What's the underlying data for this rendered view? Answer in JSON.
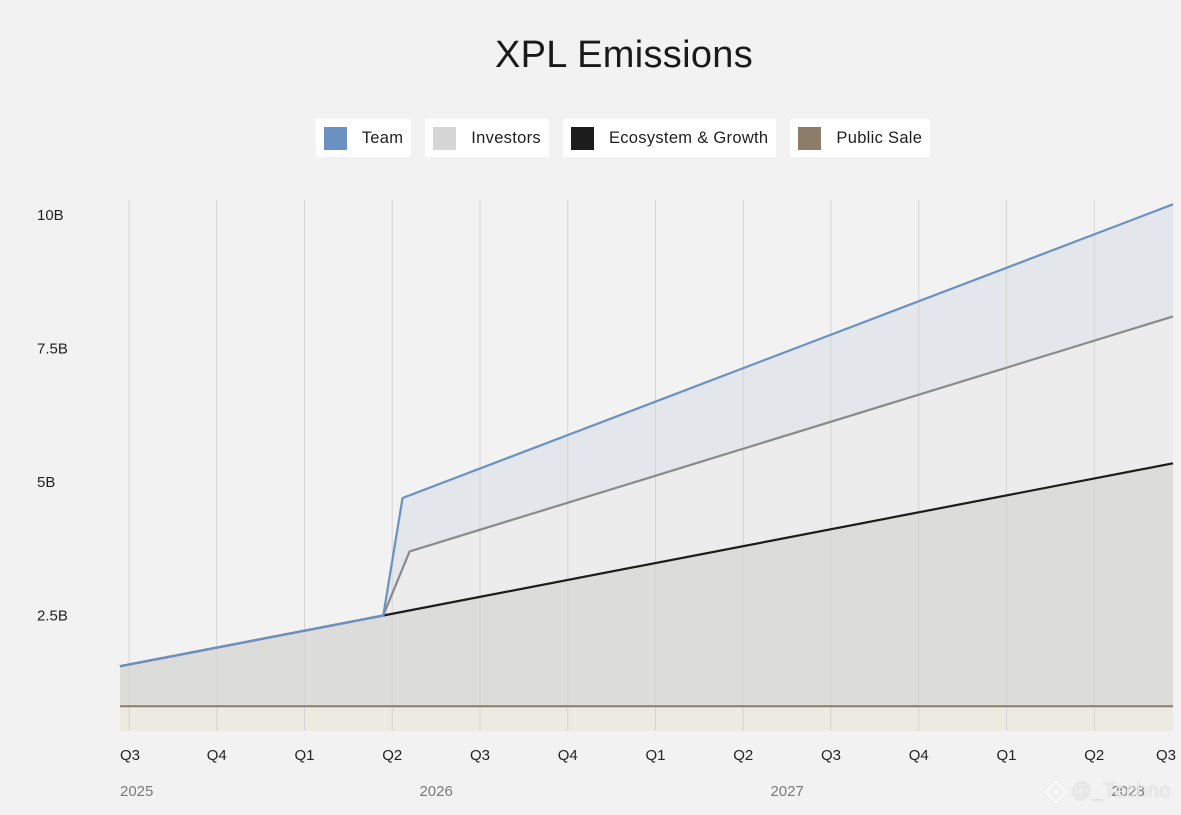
{
  "chart_data": {
    "type": "area",
    "title": "XPL Emissions",
    "xlabel": "",
    "ylabel": "",
    "stacked": true,
    "legend_position": "top-center",
    "grid": {
      "vertical": true,
      "horizontal": false
    },
    "x_ticks": [
      "Q3",
      "Q4",
      "Q1",
      "Q2",
      "Q3",
      "Q4",
      "Q1",
      "Q2",
      "Q3",
      "Q4",
      "Q1",
      "Q2",
      "Q3"
    ],
    "year_labels": [
      {
        "label": "2025",
        "at": 0
      },
      {
        "label": "2026",
        "at": 3.5
      },
      {
        "label": "2027",
        "at": 7.5
      },
      {
        "label": "2028",
        "at": 11.5
      }
    ],
    "y_ticks": [
      {
        "label": "2.5B",
        "value": 2.5
      },
      {
        "label": "5B",
        "value": 5
      },
      {
        "label": "7.5B",
        "value": 7.5
      },
      {
        "label": "10B",
        "value": 10
      }
    ],
    "ylim": [
      0,
      10
    ],
    "y_unit": "B",
    "series": [
      {
        "name": "Public Sale",
        "color": "#8c7d68",
        "fill": "#ecebe2",
        "points": [
          [
            0,
            0.8
          ],
          [
            12,
            0.8
          ]
        ]
      },
      {
        "name": "Ecosystem & Growth",
        "color": "#1c1c1c",
        "fill": "#dcdddb",
        "points": [
          [
            0,
            1.55
          ],
          [
            3,
            2.5
          ],
          [
            12,
            5.35
          ]
        ]
      },
      {
        "name": "Investors",
        "color": "#8a8a8a",
        "fill": "#ececec",
        "points": [
          [
            0,
            1.55
          ],
          [
            3,
            2.5
          ],
          [
            3.3,
            3.7
          ],
          [
            12,
            8.1
          ]
        ]
      },
      {
        "name": "Team",
        "color": "#6a91c2",
        "fill": "#e3e7ec",
        "points": [
          [
            0,
            1.55
          ],
          [
            3,
            2.5
          ],
          [
            3.22,
            4.7
          ],
          [
            12,
            10.2
          ]
        ]
      }
    ]
  },
  "legend": [
    {
      "label": "Team",
      "color": "#6a91c2"
    },
    {
      "label": "Investors",
      "color": "#d6d6d6"
    },
    {
      "label": "Ecosystem & Growth",
      "color": "#1c1c1c"
    },
    {
      "label": "Public Sale",
      "color": "#8c7d68"
    }
  ],
  "watermark": "@_Techno"
}
